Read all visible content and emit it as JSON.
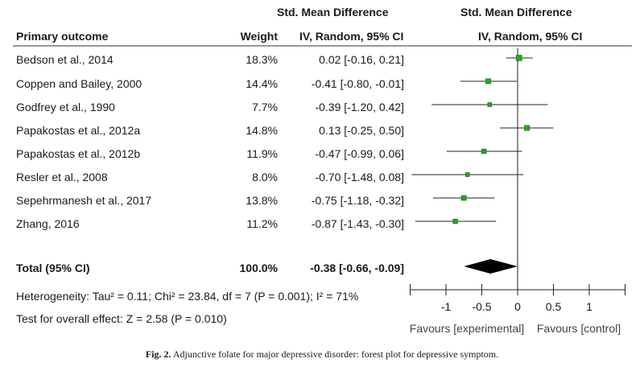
{
  "chart_data": {
    "type": "forest",
    "headers": {
      "study": "Primary outcome",
      "weight": "Weight",
      "smd_line1": "Std. Mean Difference",
      "smd_line2": "IV, Random, 95% CI",
      "plot_line1": "Std. Mean Difference",
      "plot_line2": "IV, Random, 95% CI"
    },
    "studies": [
      {
        "name": "Bedson et al., 2014",
        "weight": "18.3%",
        "ci_text": "0.02 [-0.16, 0.21]",
        "smd": 0.02,
        "lower": -0.16,
        "upper": 0.21
      },
      {
        "name": "Coppen and  Bailey, 2000",
        "weight": "14.4%",
        "ci_text": "-0.41 [-0.80, -0.01]",
        "smd": -0.41,
        "lower": -0.8,
        "upper": -0.01
      },
      {
        "name": "Godfrey et al., 1990",
        "weight": "7.7%",
        "ci_text": "-0.39 [-1.20, 0.42]",
        "smd": -0.39,
        "lower": -1.2,
        "upper": 0.42
      },
      {
        "name": "Papakostas et al., 2012a",
        "weight": "14.8%",
        "ci_text": "0.13 [-0.25, 0.50]",
        "smd": 0.13,
        "lower": -0.25,
        "upper": 0.5
      },
      {
        "name": "Papakostas et al., 2012b",
        "weight": "11.9%",
        "ci_text": "-0.47 [-0.99, 0.06]",
        "smd": -0.47,
        "lower": -0.99,
        "upper": 0.06
      },
      {
        "name": "Resler et al., 2008",
        "weight": "8.0%",
        "ci_text": "-0.70 [-1.48, 0.08]",
        "smd": -0.7,
        "lower": -1.48,
        "upper": 0.08
      },
      {
        "name": "Sepehrmanesh et al., 2017",
        "weight": "13.8%",
        "ci_text": "-0.75 [-1.18, -0.32]",
        "smd": -0.75,
        "lower": -1.18,
        "upper": -0.32
      },
      {
        "name": "Zhang, 2016",
        "weight": "11.2%",
        "ci_text": "-0.87 [-1.43, -0.30]",
        "smd": -0.87,
        "lower": -1.43,
        "upper": -0.3
      }
    ],
    "total": {
      "name": "Total (95% CI)",
      "weight": "100.0%",
      "ci_text": "-0.38 [-0.66, -0.09]",
      "smd": -0.38,
      "lower": -0.66,
      "upper": -0.09
    },
    "heterogeneity": "Heterogeneity: Tau² = 0.11; Chi² = 23.84, df = 7 (P = 0.001); I² = 71%",
    "overall_effect": "Test for overall effect: Z = 2.58 (P = 0.010)",
    "xlim": [
      -1.5,
      1.5
    ],
    "xticks": [
      -1,
      -0.5,
      0,
      0.5,
      1
    ],
    "xtick_labels": [
      "-1",
      "-0.5",
      "0",
      "0.5",
      "1"
    ],
    "favours_left": "Favours [experimental]",
    "favours_right": "Favours [control]",
    "marker_color": "#22aa22",
    "diamond_color": "#000000"
  },
  "caption": {
    "label": "Fig. 2.",
    "text": "Adjunctive folate for major depressive disorder: forest plot for depressive symptom."
  }
}
